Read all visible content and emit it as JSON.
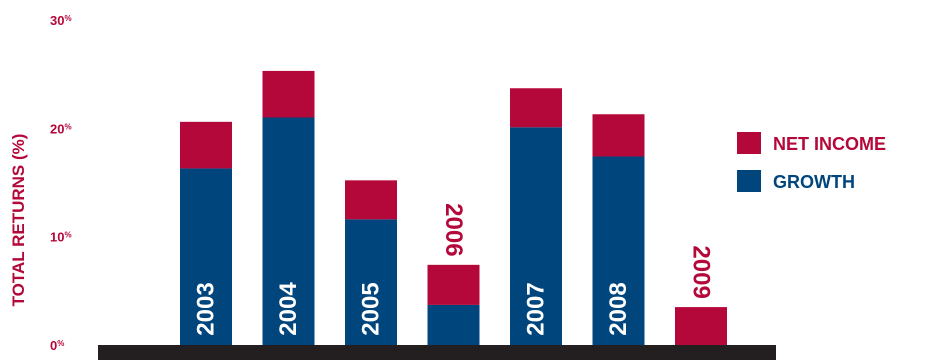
{
  "chart_data": {
    "type": "bar",
    "stacked": true,
    "ylabel": "TOTAL RETURNS (%)",
    "ylim": [
      0,
      30
    ],
    "y_ticks": [
      {
        "value": 0,
        "label": "0",
        "suffix": "%"
      },
      {
        "value": 10,
        "label": "10",
        "suffix": "%"
      },
      {
        "value": 20,
        "label": "20",
        "suffix": "%"
      },
      {
        "value": 30,
        "label": "30",
        "suffix": "%"
      }
    ],
    "categories": [
      "2003",
      "2004",
      "2005",
      "2006",
      "2007",
      "2008",
      "2009"
    ],
    "series": [
      {
        "name": "GROWTH",
        "color": "#00457c",
        "values": [
          16.3,
          21.0,
          11.6,
          3.7,
          20.1,
          17.4,
          0.0
        ]
      },
      {
        "name": "NET INCOME",
        "color": "#b5083a",
        "values": [
          4.3,
          4.3,
          3.6,
          3.7,
          3.6,
          3.9,
          3.5
        ]
      }
    ],
    "legend": {
      "position": "right"
    },
    "colors": {
      "axis_text": "#b5083a",
      "baseline": "#231f20",
      "year_on_bar": "#ffffff"
    }
  }
}
